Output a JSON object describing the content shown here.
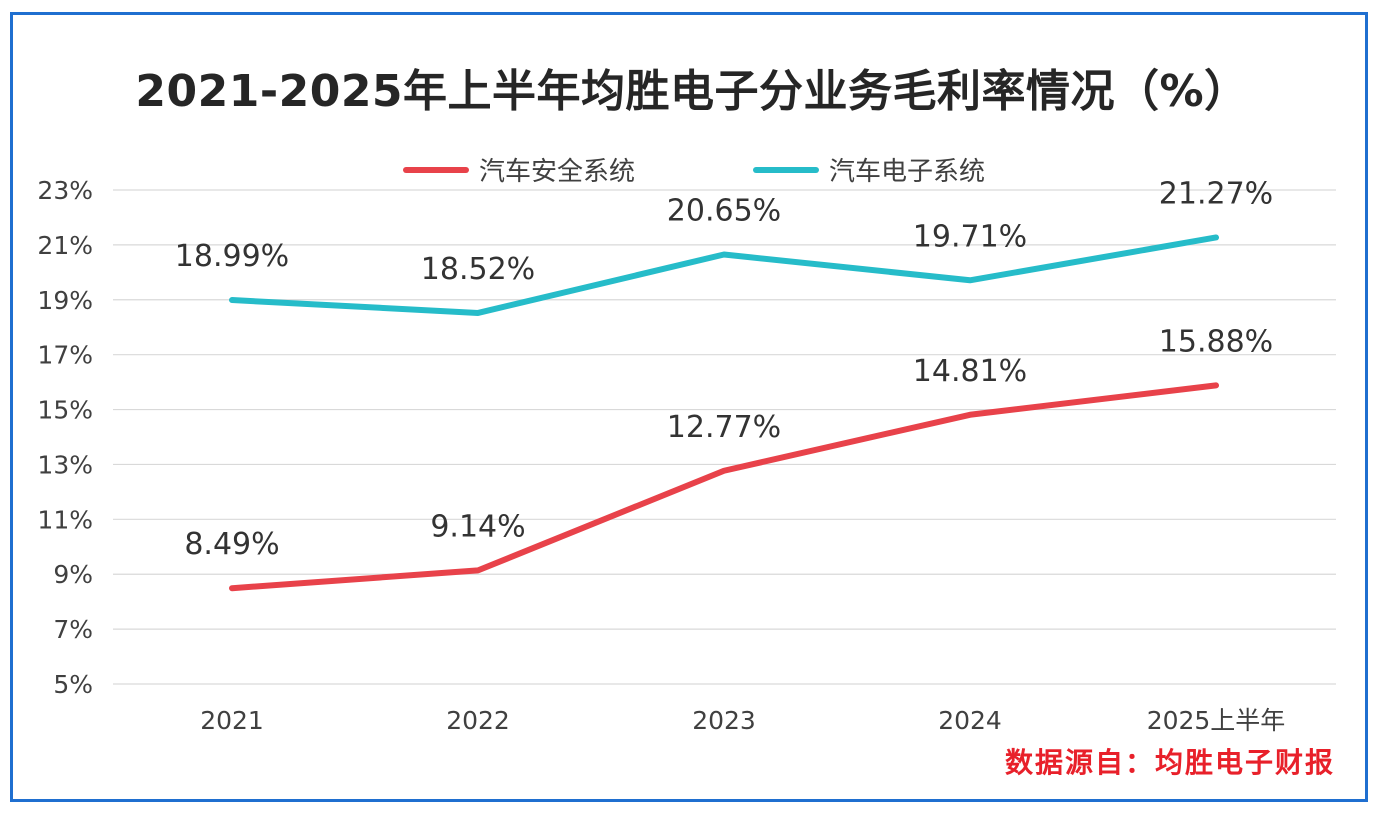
{
  "title": "2021-2025年上半年均胜电子分业务毛利率情况（%）",
  "source": "数据源自：均胜电子财报",
  "colors": {
    "safety": "#e8424a",
    "electronics": "#26bcc9",
    "frame": "#1f6fd0",
    "grid": "#d9d9d9"
  },
  "chart_data": {
    "type": "line",
    "title": "2021-2025年上半年均胜电子分业务毛利率情况（%）",
    "categories": [
      "2021",
      "2022",
      "2023",
      "2024",
      "2025上半年"
    ],
    "ylim": [
      5,
      23
    ],
    "yticks": [
      5,
      7,
      9,
      11,
      13,
      15,
      17,
      19,
      21,
      23
    ],
    "ytick_labels": [
      "5%",
      "7%",
      "9%",
      "11%",
      "13%",
      "15%",
      "17%",
      "19%",
      "21%",
      "23%"
    ],
    "grid": true,
    "legend_position": "top-center",
    "series": [
      {
        "name": "汽车安全系统",
        "key": "safety",
        "values": [
          8.49,
          9.14,
          12.77,
          14.81,
          15.88
        ],
        "labels": [
          "8.49%",
          "9.14%",
          "12.77%",
          "14.81%",
          "15.88%"
        ]
      },
      {
        "name": "汽车电子系统",
        "key": "electronics",
        "values": [
          18.99,
          18.52,
          20.65,
          19.71,
          21.27
        ],
        "labels": [
          "18.99%",
          "18.52%",
          "20.65%",
          "19.71%",
          "21.27%"
        ]
      }
    ]
  }
}
